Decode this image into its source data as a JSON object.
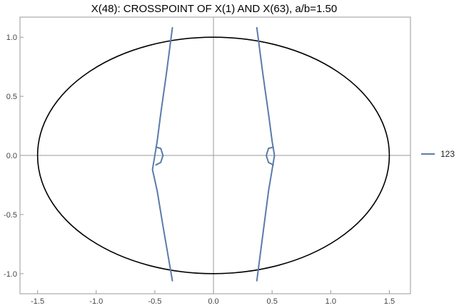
{
  "chart_data": {
    "type": "line",
    "title": "X(48): CROSSPOINT OF X(1) AND X(63), a/b=1.50",
    "xlabel": "",
    "ylabel": "",
    "xlim": [
      -1.65,
      1.68
    ],
    "ylim": [
      -1.17,
      1.17
    ],
    "x_ticks": [
      -1.5,
      -1.0,
      -0.5,
      0.0,
      0.5,
      1.0,
      1.5
    ],
    "x_tick_labels": [
      "-1.5",
      "-1.0",
      "-0.5",
      "0.0",
      "0.5",
      "1.0",
      "1.5"
    ],
    "y_ticks": [
      -1.0,
      -0.5,
      0.0,
      0.5,
      1.0
    ],
    "y_tick_labels": [
      "-1.0",
      "-0.5",
      "0.0",
      "0.5",
      "1.0"
    ],
    "grid": false,
    "legend_position": "right",
    "ellipse": {
      "a": 1.5,
      "b": 1.0,
      "color": "#000000"
    },
    "series": [
      {
        "name": "123",
        "color": "#5a7bab",
        "curves": [
          [
            [
              -0.35,
              1.08
            ],
            [
              -0.4,
              0.7
            ],
            [
              -0.45,
              0.35
            ],
            [
              -0.48,
              0.12
            ],
            [
              -0.5,
              0.0
            ],
            [
              -0.52,
              -0.12
            ],
            [
              -0.48,
              -0.3
            ],
            [
              -0.43,
              -0.6
            ],
            [
              -0.35,
              -1.06
            ]
          ],
          [
            [
              0.37,
              1.08
            ],
            [
              0.42,
              0.7
            ],
            [
              0.47,
              0.35
            ],
            [
              0.5,
              0.12
            ],
            [
              0.52,
              0.0
            ],
            [
              0.5,
              -0.12
            ],
            [
              0.47,
              -0.3
            ],
            [
              0.43,
              -0.6
            ],
            [
              0.37,
              -1.06
            ]
          ],
          [
            [
              -0.49,
              0.07
            ],
            [
              -0.45,
              0.06
            ],
            [
              -0.43,
              0.0
            ],
            [
              -0.45,
              -0.06
            ],
            [
              -0.49,
              -0.08
            ]
          ],
          [
            [
              0.51,
              0.07
            ],
            [
              0.47,
              0.06
            ],
            [
              0.45,
              0.0
            ],
            [
              0.47,
              -0.06
            ],
            [
              0.51,
              -0.08
            ]
          ]
        ]
      }
    ]
  }
}
